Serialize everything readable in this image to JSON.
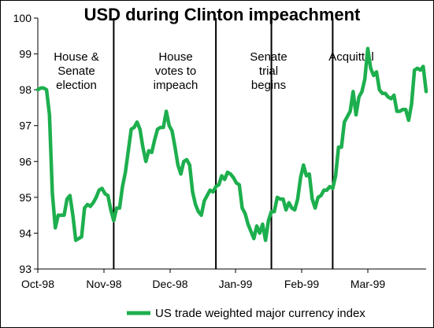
{
  "chart_data": {
    "type": "line",
    "title": "USD during Clinton impeachment",
    "xlabel": "",
    "ylabel": "",
    "ylim": [
      93,
      100
    ],
    "yticks": [
      93,
      94,
      95,
      96,
      97,
      98,
      99,
      100
    ],
    "xticks": [
      "Oct-98",
      "Nov-98",
      "Dec-98",
      "Jan-99",
      "Feb-99",
      "Mar-99"
    ],
    "grid": false,
    "legend_position": "bottom",
    "color": "#1daf4e",
    "series": [
      {
        "name": "US trade weighted major currency index",
        "values": [
          98.0,
          98.05,
          98.05,
          98.0,
          97.3,
          95.1,
          94.15,
          94.5,
          94.5,
          94.5,
          94.95,
          95.05,
          94.5,
          93.8,
          93.85,
          93.9,
          94.7,
          94.8,
          94.75,
          94.85,
          95.0,
          95.2,
          95.25,
          95.1,
          95.05,
          94.65,
          94.35,
          94.7,
          94.7,
          95.3,
          95.7,
          96.3,
          96.9,
          96.95,
          97.1,
          96.9,
          96.4,
          96.0,
          96.3,
          96.25,
          96.6,
          96.9,
          96.95,
          96.95,
          97.4,
          97.0,
          96.85,
          96.4,
          95.9,
          95.65,
          96.0,
          96.05,
          95.9,
          95.15,
          94.8,
          94.6,
          94.5,
          94.9,
          95.05,
          95.2,
          95.15,
          95.3,
          95.35,
          95.6,
          95.5,
          95.7,
          95.65,
          95.55,
          95.4,
          95.35,
          94.7,
          94.55,
          94.25,
          94.05,
          93.85,
          94.2,
          94.0,
          94.25,
          93.8,
          94.35,
          94.6,
          94.6,
          95.0,
          94.95,
          94.95,
          94.65,
          94.85,
          94.7,
          94.65,
          94.95,
          95.55,
          95.9,
          95.6,
          95.65,
          94.95,
          94.7,
          95.0,
          95.05,
          95.2,
          95.2,
          95.3,
          95.25,
          95.6,
          96.4,
          96.4,
          97.1,
          97.25,
          97.4,
          97.95,
          97.3,
          97.8,
          97.95,
          98.3,
          99.15,
          98.6,
          98.4,
          98.5,
          98.0,
          97.9,
          97.9,
          97.8,
          97.75,
          97.85,
          97.4,
          97.4,
          97.45,
          97.45,
          97.15,
          97.6,
          98.55,
          98.6,
          98.55,
          98.65,
          97.95
        ]
      }
    ],
    "events": [
      {
        "label": "House &\nSenate\nelection",
        "index": 0
      },
      {
        "label": "House\nvotes to\nimpeach",
        "index": 26
      },
      {
        "label": "Senate\ntrial\nbegins",
        "index": 61
      },
      {
        "label": "Acquittal",
        "index": 100
      }
    ],
    "event_lines_at_index": [
      26,
      61,
      80,
      101
    ]
  }
}
